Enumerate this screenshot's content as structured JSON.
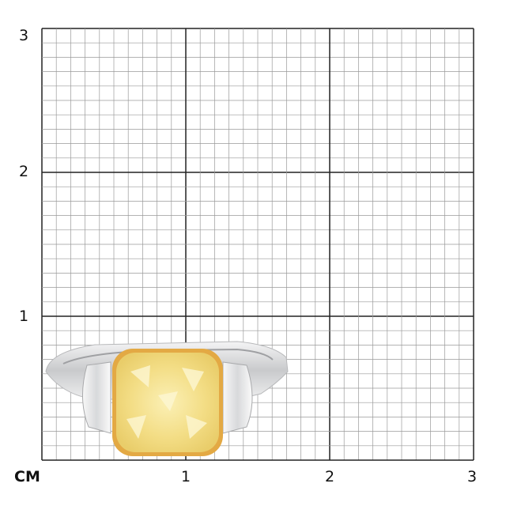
{
  "scale": {
    "unit_label": "CM",
    "y_labels": [
      "1",
      "2",
      "3"
    ],
    "x_labels": [
      "1",
      "2",
      "3"
    ],
    "subdivisions_per_cm": 10
  },
  "product": {
    "subject": "ring",
    "center_stone_color": "#f3e08a",
    "setting_color": "#e0a93a",
    "band_color": "#d9dadc"
  },
  "colors": {
    "minor_grid": "#9a9a9a",
    "major_grid": "#222222"
  }
}
